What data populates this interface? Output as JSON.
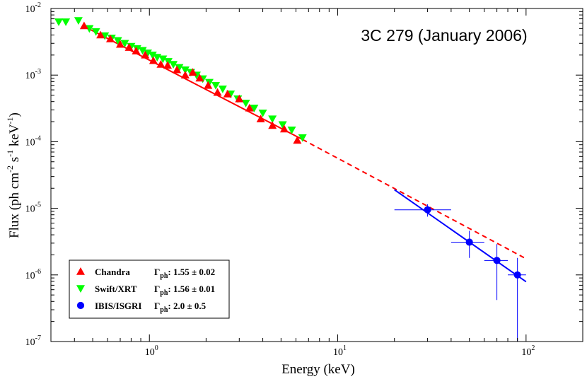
{
  "chart_data": {
    "type": "scatter",
    "title": "3C 279 (January 2006)",
    "xlabel": "Energy (keV)",
    "ylabel_parts": [
      "Flux (ph cm",
      "-2",
      " s",
      "-1",
      " keV",
      "-1",
      ")"
    ],
    "xscale": "log",
    "yscale": "log",
    "xlim": [
      0.3,
      200
    ],
    "ylim": [
      1e-07,
      0.01
    ],
    "x_ticks": [
      {
        "value": 1,
        "base": "10",
        "exp": "0"
      },
      {
        "value": 10,
        "base": "10",
        "exp": "1"
      },
      {
        "value": 100,
        "base": "10",
        "exp": "2"
      }
    ],
    "y_ticks": [
      {
        "value": 1e-07,
        "base": "10",
        "exp": "-7"
      },
      {
        "value": 1e-06,
        "base": "10",
        "exp": "-6"
      },
      {
        "value": 1e-05,
        "base": "10",
        "exp": "-5"
      },
      {
        "value": 0.0001,
        "base": "10",
        "exp": "-4"
      },
      {
        "value": 0.001,
        "base": "10",
        "exp": "-3"
      },
      {
        "value": 0.01,
        "base": "10",
        "exp": "-2"
      }
    ],
    "series": [
      {
        "name": "Chandra",
        "marker": "triangle-up",
        "color": "#ff0000",
        "gamma_label": "1.55 ± 0.02",
        "x": [
          0.45,
          0.55,
          0.62,
          0.7,
          0.78,
          0.85,
          0.95,
          1.05,
          1.15,
          1.25,
          1.4,
          1.55,
          1.7,
          1.85,
          2.05,
          2.3,
          2.6,
          3.0,
          3.4,
          3.9,
          4.5,
          5.2,
          6.1
        ],
        "y": [
          0.0055,
          0.004,
          0.0035,
          0.0029,
          0.0026,
          0.0023,
          0.002,
          0.00165,
          0.00145,
          0.0014,
          0.0012,
          0.001,
          0.0011,
          0.0009,
          0.0007,
          0.00055,
          0.00052,
          0.00044,
          0.00032,
          0.00022,
          0.000175,
          0.000155,
          0.000105
        ]
      },
      {
        "name": "Swift/XRT",
        "marker": "triangle-down",
        "color": "#00ff00",
        "gamma_label": "1.56 ± 0.01",
        "x": [
          0.33,
          0.36,
          0.42,
          0.48,
          0.52,
          0.58,
          0.63,
          0.68,
          0.74,
          0.8,
          0.86,
          0.92,
          0.98,
          1.04,
          1.1,
          1.18,
          1.26,
          1.34,
          1.44,
          1.55,
          1.66,
          1.78,
          1.92,
          2.08,
          2.25,
          2.45,
          2.7,
          2.95,
          3.25,
          3.6,
          4.0,
          4.5,
          5.1,
          5.7,
          6.5
        ],
        "y": [
          0.0063,
          0.0063,
          0.0066,
          0.005,
          0.0045,
          0.0039,
          0.0036,
          0.0033,
          0.003,
          0.0027,
          0.0025,
          0.00235,
          0.00215,
          0.002,
          0.00185,
          0.00175,
          0.0016,
          0.00145,
          0.0013,
          0.0012,
          0.0011,
          0.001,
          0.00088,
          0.00078,
          0.0007,
          0.00062,
          0.00052,
          0.00044,
          0.00038,
          0.00032,
          0.00027,
          0.00022,
          0.00018,
          0.00015,
          0.000115
        ]
      },
      {
        "name": "IBIS/ISGRI",
        "marker": "circle",
        "color": "#0000ff",
        "gamma_label": "2.0 ± 0.5",
        "x": [
          30,
          50,
          70,
          90
        ],
        "y": [
          9.5e-06,
          3.1e-06,
          1.65e-06,
          1e-06
        ],
        "x_err": [
          [
            20,
            40
          ],
          [
            40,
            60
          ],
          [
            60,
            80
          ],
          [
            80,
            100
          ]
        ],
        "y_err": [
          [
            7.5e-06,
            1.15e-05
          ],
          [
            1.8e-06,
            4.6e-06
          ],
          [
            4.2e-07,
            2.9e-06
          ],
          [
            1e-07,
            1.8e-06
          ]
        ]
      }
    ],
    "fits": [
      {
        "name": "Chandra fit",
        "color": "#ff0000",
        "style": "solid",
        "x": [
          0.45,
          6.5
        ],
        "y": [
          0.0054,
          0.000108
        ]
      },
      {
        "name": "X-ray extrapolation",
        "color": "#ff0000",
        "style": "dashed",
        "x": [
          6.5,
          100
        ],
        "y": [
          0.000108,
          1.75e-06
        ]
      },
      {
        "name": "IBIS fit",
        "color": "#0000ff",
        "style": "solid",
        "x": [
          20,
          100
        ],
        "y": [
          1.9e-05,
          7.9e-07
        ]
      }
    ],
    "legend": {
      "placement": "bottom-left",
      "gamma_symbol": "Γ",
      "gamma_subscript": "ph",
      "gamma_colon": ":"
    }
  }
}
